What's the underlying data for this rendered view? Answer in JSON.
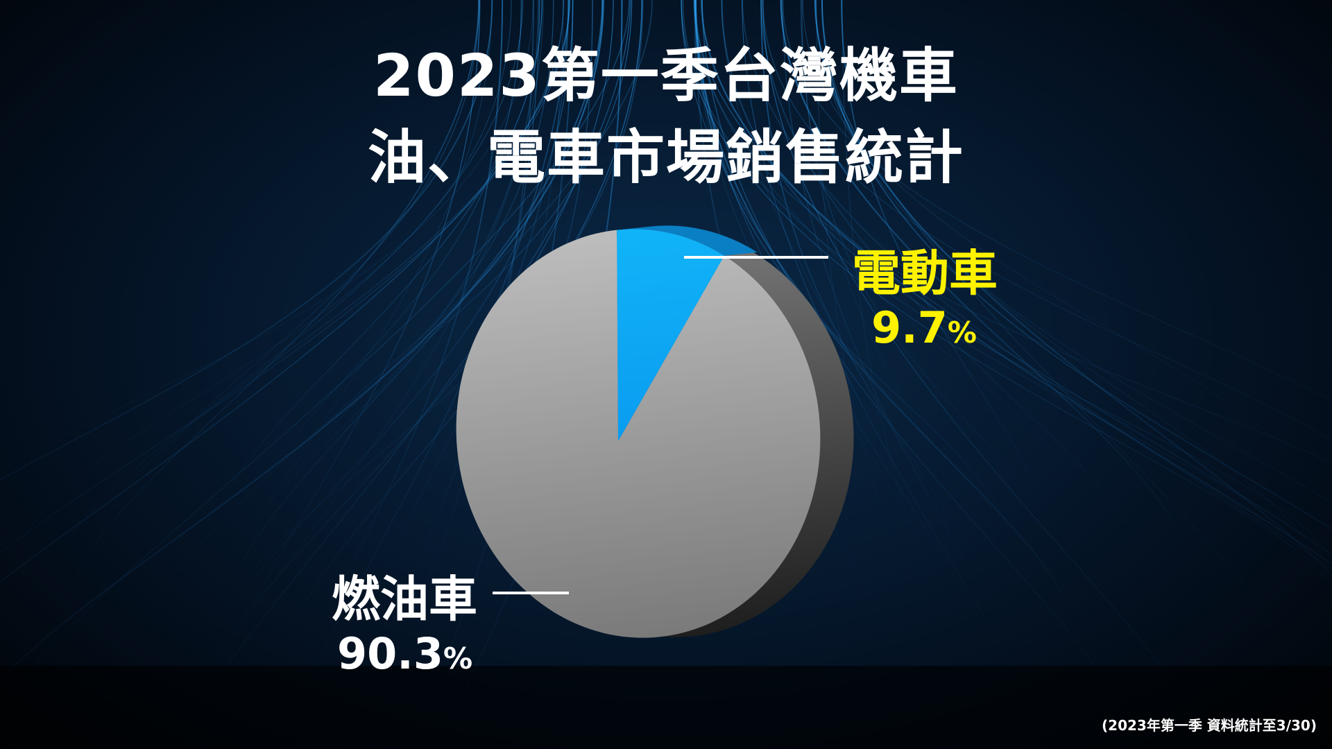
{
  "chart_data": {
    "type": "pie",
    "title": [
      "2023第一季台灣機車",
      "油、電車市場銷售統計"
    ],
    "slices": [
      {
        "label": "電動車",
        "value": 9.7,
        "display": "9.7",
        "unit": "%",
        "color": "#0aa6f5",
        "label_color": "#fff200"
      },
      {
        "label": "燃油車",
        "value": 90.3,
        "display": "90.3",
        "unit": "%",
        "color": "#a8a8a8",
        "label_color": "#ffffff"
      }
    ],
    "footnote": "(2023年第一季 資料統計至3/30)"
  }
}
